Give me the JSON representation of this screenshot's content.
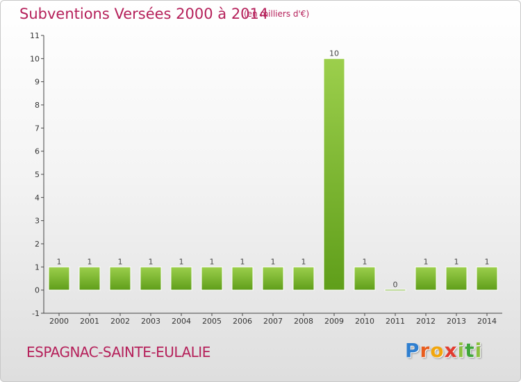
{
  "title": "Subventions Versées 2000 à 2014",
  "subtitle": "(en milliers d'€)",
  "commune": "ESPAGNAC-SAINTE-EULALIE",
  "logo": {
    "letters": [
      "P",
      "r",
      "o",
      "x",
      "i",
      "t",
      "i"
    ],
    "colors": [
      "#2f7fd0",
      "#e85d1e",
      "#f2a60c",
      "#e23b2f",
      "#8cc13f",
      "#3fa63a",
      "#8cc13f"
    ]
  },
  "colors": {
    "bar_light": "#9ccf4c",
    "bar_dark": "#5f9e1a",
    "text": "#b5205a",
    "axis": "#444444"
  },
  "chart_data": {
    "type": "bar",
    "title": "Subventions Versées 2000 à 2014",
    "subtitle": "(en milliers d'€)",
    "categories": [
      "2000",
      "2001",
      "2002",
      "2003",
      "2004",
      "2005",
      "2006",
      "2007",
      "2008",
      "2009",
      "2010",
      "2011",
      "2012",
      "2013",
      "2014"
    ],
    "values": [
      1,
      1,
      1,
      1,
      1,
      1,
      1,
      1,
      1,
      10,
      1,
      0,
      1,
      1,
      1
    ],
    "data_labels": [
      "1",
      "1",
      "1",
      "1",
      "1",
      "1",
      "1",
      "1",
      "1",
      "10",
      "1",
      "0",
      "1",
      "1",
      "1"
    ],
    "y_ticks": [
      "-1",
      "0",
      "1",
      "2",
      "3",
      "4",
      "5",
      "6",
      "7",
      "8",
      "9",
      "10",
      "11"
    ],
    "ylim": [
      -1,
      11
    ],
    "grid": false,
    "legend": "none"
  }
}
